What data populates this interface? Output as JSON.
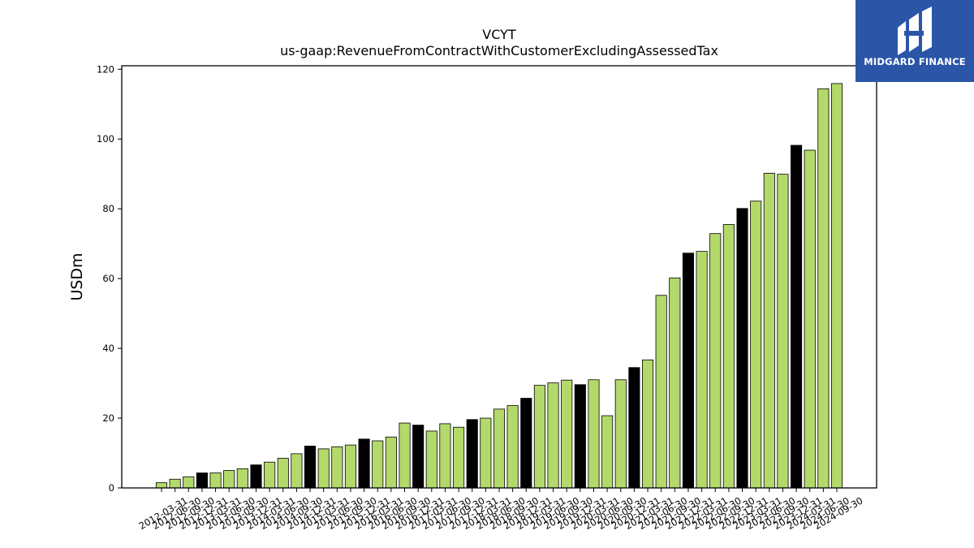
{
  "chart_data": {
    "type": "bar",
    "title": "VCYT",
    "subtitle": "us-gaap:RevenueFromContractWithCustomerExcludingAssessedTax",
    "xlabel": "",
    "ylabel": "USDm",
    "ylim": [
      0,
      121
    ],
    "yticks": [
      0,
      20,
      40,
      60,
      80,
      100,
      120
    ],
    "grid": false,
    "colors": {
      "quarter": "#b3d96b",
      "fiscal_year_end": "#000000",
      "edge": "#000000"
    },
    "categories": [
      "2012-03-31",
      "2012-06-30",
      "2012-09-30",
      "2012-12-31",
      "2013-03-31",
      "2013-06-30",
      "2013-09-30",
      "2013-12-31",
      "2014-03-31",
      "2014-06-30",
      "2014-09-30",
      "2014-12-31",
      "2015-03-31",
      "2015-06-30",
      "2015-09-30",
      "2015-12-31",
      "2016-03-31",
      "2016-06-30",
      "2016-09-30",
      "2016-12-31",
      "2017-03-31",
      "2017-06-30",
      "2017-09-30",
      "2017-12-31",
      "2018-03-31",
      "2018-06-30",
      "2018-09-30",
      "2018-12-31",
      "2019-03-31",
      "2019-06-30",
      "2019-09-30",
      "2019-12-31",
      "2020-03-31",
      "2020-06-30",
      "2020-09-30",
      "2020-12-31",
      "2021-03-31",
      "2021-06-30",
      "2021-09-30",
      "2021-12-31",
      "2022-03-31",
      "2022-06-30",
      "2022-09-30",
      "2022-12-31",
      "2023-03-31",
      "2023-06-30",
      "2023-09-30",
      "2023-12-31",
      "2024-03-31",
      "2024-06-30",
      "2024-09-30"
    ],
    "values": [
      1.5,
      2.5,
      3.2,
      4.3,
      4.3,
      5.0,
      5.5,
      6.6,
      7.4,
      8.5,
      9.8,
      12.0,
      11.2,
      11.8,
      12.3,
      14.0,
      13.5,
      14.6,
      18.6,
      18.0,
      16.3,
      18.4,
      17.4,
      19.6,
      20.0,
      22.6,
      23.6,
      25.7,
      29.4,
      30.1,
      30.9,
      29.6,
      31.0,
      20.7,
      31.0,
      34.5,
      36.7,
      55.2,
      60.2,
      67.3,
      67.8,
      72.9,
      75.5,
      80.1,
      82.2,
      90.2,
      89.9,
      98.2,
      96.8,
      114.4,
      115.9
    ],
    "highlight": [
      false,
      false,
      false,
      true,
      false,
      false,
      false,
      true,
      false,
      false,
      false,
      true,
      false,
      false,
      false,
      true,
      false,
      false,
      false,
      true,
      false,
      false,
      false,
      true,
      false,
      false,
      false,
      true,
      false,
      false,
      false,
      true,
      false,
      false,
      false,
      true,
      false,
      false,
      false,
      true,
      false,
      false,
      false,
      true,
      false,
      false,
      false,
      true,
      false,
      false,
      false
    ]
  },
  "logo": {
    "text": "MIDGARD FINANCE",
    "icon": "midgard-logo-icon",
    "background": "#2b56a8"
  }
}
